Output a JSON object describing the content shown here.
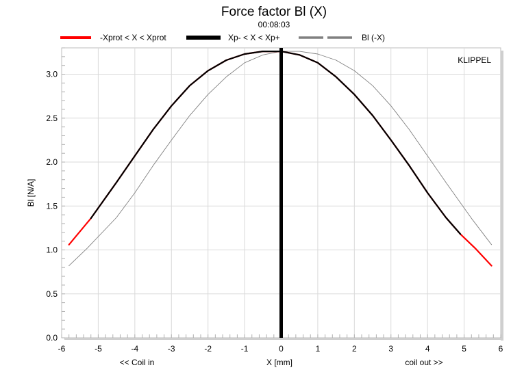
{
  "chart_data": {
    "type": "line",
    "title": "Force factor Bl (X)",
    "subtitle": "00:08:03",
    "xlabel": "X [mm]",
    "xlabel_left": "<< Coil in",
    "xlabel_right": "coil out >>",
    "ylabel": "Bl [N/A]",
    "xlim": [
      -6,
      6
    ],
    "ylim": [
      0.0,
      3.3
    ],
    "x_ticks": [
      -6,
      -5,
      -4,
      -3,
      -2,
      -1,
      0,
      1,
      2,
      3,
      4,
      5,
      6
    ],
    "y_ticks": [
      0.0,
      0.5,
      1.0,
      1.5,
      2.0,
      2.5,
      3.0
    ],
    "y_tick_labels": [
      "0.0",
      "0.5",
      "1.0",
      "1.5",
      "2.0",
      "2.5",
      "3.0"
    ],
    "grid": true,
    "legend_position": "top",
    "watermark": "KLIPPEL",
    "vertical_marker_x": 0,
    "series": [
      {
        "name": "-Xprot < X < Xprot",
        "color": "#ff0000",
        "style": "solid",
        "x": [
          -5.8,
          -5.2,
          -4.5,
          -4.0,
          -3.5,
          -3.0,
          -2.5,
          -2.0,
          -1.5,
          -1.0,
          -0.5,
          0.0,
          0.5,
          1.0,
          1.5,
          2.0,
          2.5,
          3.0,
          3.5,
          4.0,
          4.5,
          4.9,
          5.3,
          5.75
        ],
        "y": [
          1.06,
          1.36,
          1.77,
          2.07,
          2.37,
          2.64,
          2.87,
          3.04,
          3.16,
          3.23,
          3.26,
          3.26,
          3.22,
          3.13,
          2.97,
          2.77,
          2.53,
          2.25,
          1.96,
          1.65,
          1.37,
          1.18,
          1.02,
          0.82
        ]
      },
      {
        "name": "Xp- < X < Xp+",
        "color": "#000000",
        "style": "solid",
        "x": [
          -5.2,
          -4.5,
          -4.0,
          -3.5,
          -3.0,
          -2.5,
          -2.0,
          -1.5,
          -1.0,
          -0.5,
          0.0,
          0.5,
          1.0,
          1.5,
          2.0,
          2.5,
          3.0,
          3.5,
          4.0,
          4.5,
          4.9
        ],
        "y": [
          1.36,
          1.77,
          2.07,
          2.37,
          2.64,
          2.87,
          3.04,
          3.16,
          3.23,
          3.26,
          3.26,
          3.22,
          3.13,
          2.97,
          2.77,
          2.53,
          2.25,
          1.96,
          1.65,
          1.37,
          1.18
        ]
      },
      {
        "name": "Bl (-X)",
        "color": "#808080",
        "style": "thin",
        "x": [
          -5.8,
          -5.3,
          -4.5,
          -4.0,
          -3.5,
          -3.0,
          -2.5,
          -2.0,
          -1.5,
          -1.0,
          -0.5,
          0.0,
          0.5,
          1.0,
          1.5,
          2.0,
          2.5,
          3.0,
          3.5,
          4.0,
          4.5,
          5.2,
          5.75
        ],
        "y": [
          0.82,
          1.02,
          1.37,
          1.65,
          1.96,
          2.25,
          2.53,
          2.77,
          2.97,
          3.13,
          3.22,
          3.26,
          3.26,
          3.23,
          3.16,
          3.04,
          2.87,
          2.64,
          2.37,
          2.07,
          1.77,
          1.36,
          1.06
        ]
      }
    ]
  }
}
